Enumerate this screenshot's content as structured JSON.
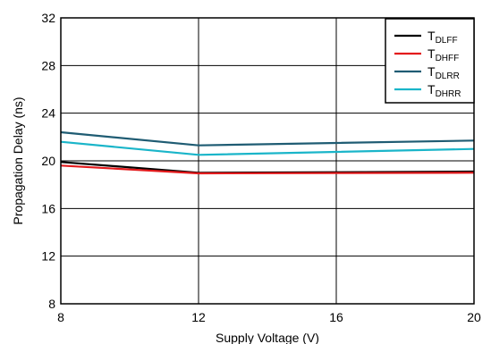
{
  "chart_data": {
    "type": "line",
    "title": "",
    "xlabel": "Supply Voltage (V)",
    "ylabel": "Propagation Delay (ns)",
    "xlim": [
      8,
      20
    ],
    "ylim": [
      8,
      32
    ],
    "xticks": [
      8,
      12,
      16,
      20
    ],
    "yticks": [
      8,
      12,
      16,
      20,
      24,
      28,
      32
    ],
    "x_tick_labels": [
      "8",
      "12",
      "16",
      "20"
    ],
    "y_tick_labels": [
      "8",
      "12",
      "16",
      "20",
      "24",
      "28",
      "32"
    ],
    "grid": true,
    "legend_position": "top-right",
    "series": [
      {
        "name": "T",
        "subscript": "DLFF",
        "color": "#000000",
        "x": [
          8,
          12,
          16,
          20
        ],
        "y": [
          19.9,
          19.0,
          19.05,
          19.1
        ]
      },
      {
        "name": "T",
        "subscript": "DHFF",
        "color": "#e31a1c",
        "x": [
          8,
          12,
          16,
          20
        ],
        "y": [
          19.6,
          18.95,
          18.97,
          19.0
        ]
      },
      {
        "name": "T",
        "subscript": "DLRR",
        "color": "#1f5c73",
        "x": [
          8,
          12,
          16,
          20
        ],
        "y": [
          22.4,
          21.3,
          21.5,
          21.7
        ]
      },
      {
        "name": "T",
        "subscript": "DHRR",
        "color": "#1ab5c9",
        "x": [
          8,
          12,
          16,
          20
        ],
        "y": [
          21.6,
          20.5,
          20.75,
          21.0
        ]
      }
    ]
  }
}
